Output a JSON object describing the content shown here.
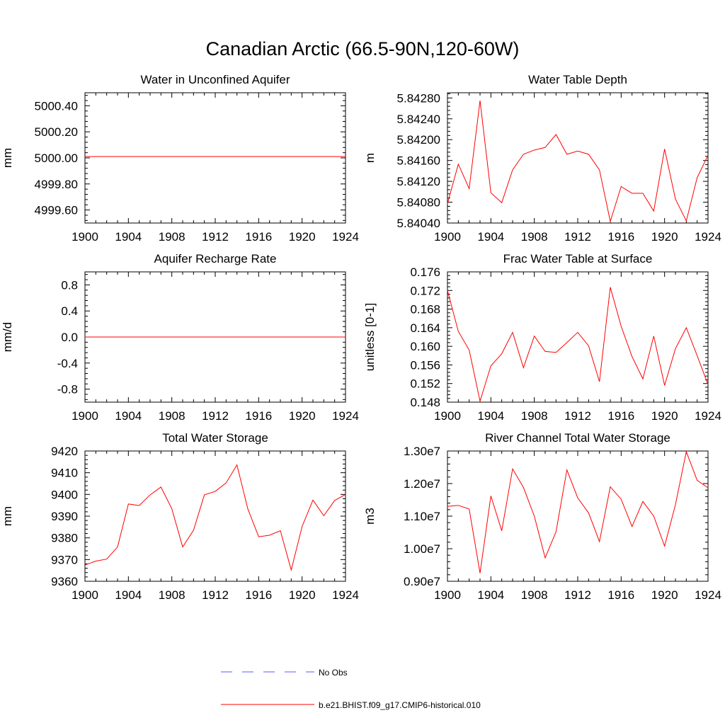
{
  "title": "Canadian Arctic (66.5-90N,120-60W)",
  "colors": {
    "model": "#ff0000",
    "obs": "#5a5aff",
    "axis": "#000000"
  },
  "legend": {
    "obs_label": "No Obs",
    "model_label": "b.e21.BHIST.f09_g17.CMIP6-historical.010"
  },
  "chart_data": [
    {
      "type": "line",
      "title": "Water in Unconfined Aquifer",
      "xlabel": "",
      "ylabel": "mm",
      "xlim": [
        1900,
        1924
      ],
      "ylim": [
        4999.5,
        5000.5
      ],
      "xticks": [
        1900,
        1904,
        1908,
        1912,
        1916,
        1920,
        1924
      ],
      "xtick_labels": [
        "1900",
        "1904",
        "1908",
        "1912",
        "1916",
        "1920",
        "1924"
      ],
      "yticks": [
        4999.6,
        4999.8,
        5000.0,
        5000.2,
        5000.4
      ],
      "ytick_labels": [
        "4999.60",
        "4999.80",
        "5000.00",
        "5000.20",
        "5000.40"
      ],
      "x": [
        1900,
        1901,
        1902,
        1903,
        1904,
        1905,
        1906,
        1907,
        1908,
        1909,
        1910,
        1911,
        1912,
        1913,
        1914,
        1915,
        1916,
        1917,
        1918,
        1919,
        1920,
        1921,
        1922,
        1923,
        1924
      ],
      "series": [
        {
          "values": [
            5000.01,
            5000.01,
            5000.01,
            5000.01,
            5000.01,
            5000.01,
            5000.01,
            5000.01,
            5000.01,
            5000.01,
            5000.01,
            5000.01,
            5000.01,
            5000.01,
            5000.01,
            5000.01,
            5000.01,
            5000.01,
            5000.01,
            5000.01,
            5000.01,
            5000.01,
            5000.01,
            5000.01,
            5000.01
          ]
        }
      ]
    },
    {
      "type": "line",
      "title": "Water Table Depth",
      "xlabel": "",
      "ylabel": "m",
      "xlim": [
        1900,
        1924
      ],
      "ylim": [
        5.8404,
        5.8429
      ],
      "xticks": [
        1900,
        1904,
        1908,
        1912,
        1916,
        1920,
        1924
      ],
      "xtick_labels": [
        "1900",
        "1904",
        "1908",
        "1912",
        "1916",
        "1920",
        "1924"
      ],
      "yticks": [
        5.8404,
        5.8408,
        5.8412,
        5.8416,
        5.842,
        5.8424,
        5.8428
      ],
      "ytick_labels": [
        "5.84040",
        "5.84080",
        "5.84120",
        "5.84160",
        "5.84200",
        "5.84240",
        "5.84280"
      ],
      "x": [
        1900,
        1901,
        1902,
        1903,
        1904,
        1905,
        1906,
        1907,
        1908,
        1909,
        1910,
        1911,
        1912,
        1913,
        1914,
        1915,
        1916,
        1917,
        1918,
        1919,
        1920,
        1921,
        1922,
        1923,
        1924
      ],
      "series": [
        {
          "values": [
            5.84077,
            5.84153,
            5.84106,
            5.84275,
            5.84098,
            5.84079,
            5.84142,
            5.84172,
            5.8418,
            5.84185,
            5.8421,
            5.84172,
            5.84178,
            5.84172,
            5.84142,
            5.84043,
            5.8411,
            5.84097,
            5.84097,
            5.84063,
            5.84182,
            5.84086,
            5.84044,
            5.84127,
            5.8417
          ]
        }
      ]
    },
    {
      "type": "line",
      "title": "Aquifer Recharge Rate",
      "xlabel": "",
      "ylabel": "mm/d",
      "xlim": [
        1900,
        1924
      ],
      "ylim": [
        -1.0,
        1.0
      ],
      "xticks": [
        1900,
        1904,
        1908,
        1912,
        1916,
        1920,
        1924
      ],
      "xtick_labels": [
        "1900",
        "1904",
        "1908",
        "1912",
        "1916",
        "1920",
        "1924"
      ],
      "yticks": [
        -0.8,
        -0.4,
        0.0,
        0.4,
        0.8
      ],
      "ytick_labels": [
        "-0.8",
        "-0.4",
        "0.0",
        "0.4",
        "0.8"
      ],
      "x": [
        1900,
        1901,
        1902,
        1903,
        1904,
        1905,
        1906,
        1907,
        1908,
        1909,
        1910,
        1911,
        1912,
        1913,
        1914,
        1915,
        1916,
        1917,
        1918,
        1919,
        1920,
        1921,
        1922,
        1923,
        1924
      ],
      "series": [
        {
          "values": [
            0,
            0,
            0,
            0,
            0,
            0,
            0,
            0,
            0,
            0,
            0,
            0,
            0,
            0,
            0,
            0,
            0,
            0,
            0,
            0,
            0,
            0,
            0,
            0,
            0
          ]
        }
      ]
    },
    {
      "type": "line",
      "title": "Frac Water Table at Surface",
      "xlabel": "",
      "ylabel": "unitless [0-1]",
      "xlim": [
        1900,
        1924
      ],
      "ylim": [
        0.148,
        0.176
      ],
      "xticks": [
        1900,
        1904,
        1908,
        1912,
        1916,
        1920,
        1924
      ],
      "xtick_labels": [
        "1900",
        "1904",
        "1908",
        "1912",
        "1916",
        "1920",
        "1924"
      ],
      "yticks": [
        0.148,
        0.152,
        0.156,
        0.16,
        0.164,
        0.168,
        0.172,
        0.176
      ],
      "ytick_labels": [
        "0.148",
        "0.152",
        "0.156",
        "0.160",
        "0.164",
        "0.168",
        "0.172",
        "0.176"
      ],
      "x": [
        1900,
        1901,
        1902,
        1903,
        1904,
        1905,
        1906,
        1907,
        1908,
        1909,
        1910,
        1911,
        1912,
        1913,
        1914,
        1915,
        1916,
        1917,
        1918,
        1919,
        1920,
        1921,
        1922,
        1923,
        1924
      ],
      "series": [
        {
          "values": [
            0.172,
            0.1632,
            0.1592,
            0.1482,
            0.1558,
            0.1584,
            0.163,
            0.1554,
            0.1622,
            0.1589,
            0.1587,
            0.1608,
            0.163,
            0.1601,
            0.1524,
            0.1727,
            0.1643,
            0.1578,
            0.153,
            0.1622,
            0.1516,
            0.1595,
            0.164,
            0.158,
            0.1518
          ]
        }
      ]
    },
    {
      "type": "line",
      "title": "Total Water Storage",
      "xlabel": "",
      "ylabel": "mm",
      "xlim": [
        1900,
        1924
      ],
      "ylim": [
        9360,
        9420
      ],
      "xticks": [
        1900,
        1904,
        1908,
        1912,
        1916,
        1920,
        1924
      ],
      "xtick_labels": [
        "1900",
        "1904",
        "1908",
        "1912",
        "1916",
        "1920",
        "1924"
      ],
      "yticks": [
        9360,
        9370,
        9380,
        9390,
        9400,
        9410,
        9420
      ],
      "ytick_labels": [
        "9360",
        "9370",
        "9380",
        "9390",
        "9400",
        "9410",
        "9420"
      ],
      "x": [
        1900,
        1901,
        1902,
        1903,
        1904,
        1905,
        1906,
        1907,
        1908,
        1909,
        1910,
        1911,
        1912,
        1913,
        1914,
        1915,
        1916,
        1917,
        1918,
        1919,
        1920,
        1921,
        1922,
        1923,
        1924
      ],
      "series": [
        {
          "values": [
            9367.5,
            9369.3,
            9370.2,
            9375.8,
            9395.6,
            9394.9,
            9399.8,
            9403.4,
            9393.4,
            9375.8,
            9383.5,
            9399.8,
            9401.4,
            9405.3,
            9413.6,
            9393.4,
            9380.5,
            9381.2,
            9383.3,
            9365.2,
            9385.2,
            9397.4,
            9390.2,
            9397.2,
            9400.0
          ]
        }
      ]
    },
    {
      "type": "line",
      "title": "River Channel Total Water Storage",
      "xlabel": "",
      "ylabel": "m3",
      "xlim": [
        1900,
        1924
      ],
      "ylim": [
        9000000,
        13000000
      ],
      "xticks": [
        1900,
        1904,
        1908,
        1912,
        1916,
        1920,
        1924
      ],
      "xtick_labels": [
        "1900",
        "1904",
        "1908",
        "1912",
        "1916",
        "1920",
        "1924"
      ],
      "yticks": [
        9000000,
        10000000,
        11000000,
        12000000,
        13000000
      ],
      "ytick_labels": [
        "0.90e7",
        "1.00e7",
        "1.10e7",
        "1.20e7",
        "1.30e7"
      ],
      "x": [
        1900,
        1901,
        1902,
        1903,
        1904,
        1905,
        1906,
        1907,
        1908,
        1909,
        1910,
        1911,
        1912,
        1913,
        1914,
        1915,
        1916,
        1917,
        1918,
        1919,
        1920,
        1921,
        1922,
        1923,
        1924
      ],
      "series": [
        {
          "values": [
            11300000,
            11330000,
            11220000,
            9250000,
            11620000,
            10550000,
            12450000,
            11880000,
            11000000,
            9720000,
            10520000,
            12420000,
            11560000,
            11100000,
            10220000,
            11900000,
            11520000,
            10680000,
            11450000,
            11000000,
            10080000,
            11350000,
            12980000,
            12100000,
            11870000
          ]
        }
      ]
    }
  ]
}
